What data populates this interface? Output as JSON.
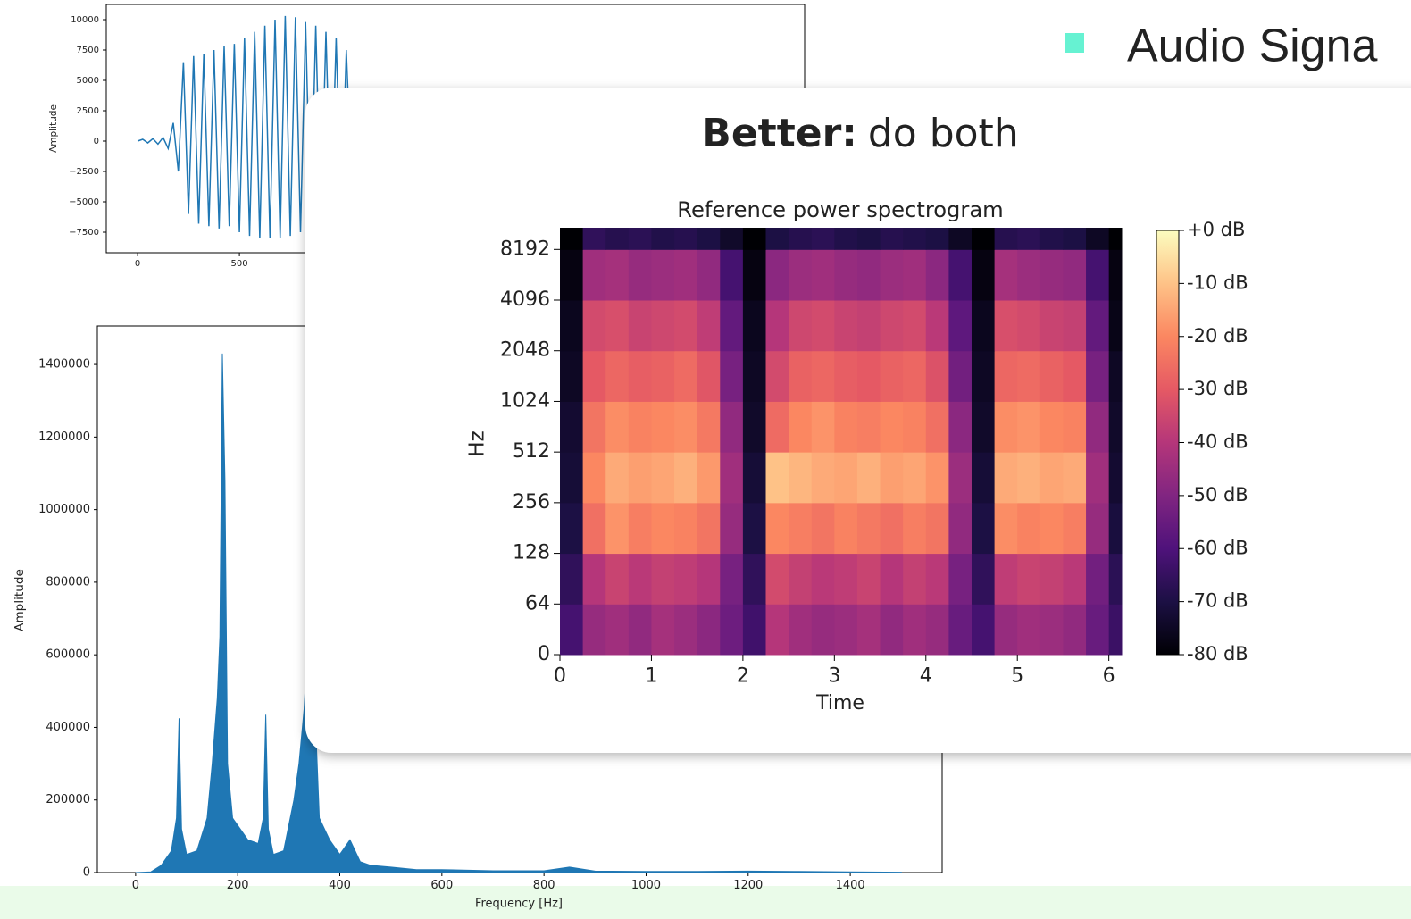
{
  "slide": {
    "heading": "Audio Signa",
    "card_title_bold": "Better:",
    "card_title_rest": "do both"
  },
  "chart_data": [
    {
      "type": "line",
      "y_label": "Amplitude",
      "color": "#1f77b4",
      "xlim": [
        -154,
        3276
      ],
      "ylim": [
        -9190,
        11250
      ],
      "xticks": [
        0,
        500
      ],
      "yticks": [
        10000,
        7500,
        5000,
        2500,
        0,
        {
          "value": -2500,
          "label": "−2500"
        },
        {
          "value": -5000,
          "label": "−5000"
        },
        {
          "value": -7500,
          "label": "−7500"
        }
      ],
      "x": [
        0,
        25,
        50,
        75,
        100,
        125,
        150,
        175,
        200,
        225,
        250,
        275,
        300,
        325,
        350,
        375,
        400,
        425,
        450,
        475,
        500,
        525,
        550,
        575,
        600,
        625,
        650,
        675,
        700,
        725,
        750,
        775,
        800,
        825,
        850,
        875,
        900,
        925,
        950,
        975,
        1000,
        1025,
        1050
      ],
      "values": [
        0,
        150,
        -150,
        200,
        -250,
        300,
        -600,
        1500,
        -2500,
        6500,
        -6000,
        7000,
        -6800,
        7200,
        -7000,
        7500,
        -7200,
        7800,
        -7000,
        8000,
        -7500,
        8500,
        -7800,
        9000,
        -8000,
        9500,
        -8000,
        10000,
        -8000,
        10300,
        -7800,
        10200,
        -7500,
        9800,
        -7200,
        9500,
        -7000,
        9000,
        -6500,
        8500,
        -6000,
        7500,
        -3000
      ]
    },
    {
      "type": "area",
      "x_label": "Frequency [Hz]",
      "y_label": "Amplitude",
      "color": "#1f77b4",
      "xlim": [
        -75,
        1580
      ],
      "ylim": [
        0,
        1506000
      ],
      "xticks": [
        0,
        200,
        400,
        600,
        800,
        1000,
        1200,
        1400
      ],
      "yticks": [
        0,
        200000,
        400000,
        600000,
        800000,
        1000000,
        1200000,
        1400000
      ],
      "x": [
        0,
        30,
        50,
        70,
        80,
        85,
        90,
        100,
        120,
        140,
        150,
        160,
        165,
        170,
        175,
        180,
        190,
        200,
        220,
        240,
        250,
        255,
        260,
        270,
        290,
        310,
        320,
        330,
        340,
        350,
        360,
        380,
        400,
        420,
        440,
        460,
        500,
        550,
        600,
        700,
        800,
        850,
        900,
        1000,
        1100,
        1200,
        1300,
        1400,
        1500
      ],
      "values": [
        0,
        2000,
        20000,
        60000,
        150000,
        425000,
        120000,
        50000,
        60000,
        150000,
        300000,
        480000,
        650000,
        1430000,
        1080000,
        300000,
        150000,
        130000,
        90000,
        80000,
        150000,
        435000,
        120000,
        50000,
        60000,
        200000,
        300000,
        450000,
        700000,
        500000,
        150000,
        90000,
        50000,
        90000,
        30000,
        20000,
        15000,
        8000,
        8000,
        5000,
        5000,
        15000,
        4000,
        3000,
        3000,
        4000,
        3000,
        2000,
        1000
      ]
    },
    {
      "type": "heatmap",
      "title": "Reference power spectrogram",
      "x_label": "Time",
      "y_label": "Hz",
      "colormap": "magma",
      "yscale": "symlog",
      "linthresh": 64,
      "xlim": [
        0,
        6.14
      ],
      "ylim": [
        0,
        11025
      ],
      "xticks": [
        0,
        1,
        2,
        3,
        4,
        5,
        6
      ],
      "yticks": [
        0,
        64,
        128,
        256,
        512,
        1024,
        2048,
        4096,
        8192
      ],
      "clim": [
        -80,
        0
      ],
      "cticks": [
        {
          "value": 0,
          "label": "+0 dB"
        },
        {
          "value": -10,
          "label": "-10 dB"
        },
        {
          "value": -20,
          "label": "-20 dB"
        },
        {
          "value": -30,
          "label": "-30 dB"
        },
        {
          "value": -40,
          "label": "-40 dB"
        },
        {
          "value": -50,
          "label": "-50 dB"
        },
        {
          "value": -60,
          "label": "-60 dB"
        },
        {
          "value": -70,
          "label": "-70 dB"
        },
        {
          "value": -80,
          "label": "-80 dB"
        }
      ],
      "x_edges": [
        0,
        0.25,
        0.5,
        0.75,
        1,
        1.25,
        1.5,
        1.75,
        2,
        2.25,
        2.5,
        2.75,
        3,
        3.25,
        3.5,
        3.75,
        4,
        4.25,
        4.5,
        4.75,
        5,
        5.25,
        5.5,
        5.75,
        6,
        6.14
      ],
      "y_edges": [
        0,
        64,
        128,
        256,
        512,
        1024,
        2048,
        4096,
        8192,
        11025
      ],
      "z": [
        [
          -62,
          -46,
          -44,
          -47,
          -43,
          -45,
          -48,
          -54,
          -63,
          -40,
          -44,
          -46,
          -45,
          -43,
          -47,
          -44,
          -46,
          -55,
          -62,
          -46,
          -44,
          -45,
          -47,
          -55,
          -64
        ],
        [
          -66,
          -40,
          -36,
          -39,
          -37,
          -38,
          -40,
          -52,
          -66,
          -34,
          -37,
          -39,
          -38,
          -36,
          -40,
          -37,
          -39,
          -52,
          -66,
          -38,
          -36,
          -37,
          -39,
          -53,
          -67
        ],
        [
          -70,
          -25,
          -18,
          -22,
          -20,
          -21,
          -24,
          -46,
          -70,
          -20,
          -22,
          -24,
          -21,
          -23,
          -25,
          -22,
          -24,
          -47,
          -70,
          -19,
          -21,
          -20,
          -22,
          -46,
          -71
        ],
        [
          -72,
          -20,
          -14,
          -16,
          -15,
          -13,
          -17,
          -44,
          -72,
          -10,
          -12,
          -14,
          -15,
          -13,
          -16,
          -15,
          -18,
          -45,
          -72,
          -14,
          -13,
          -15,
          -14,
          -44,
          -73
        ],
        [
          -73,
          -24,
          -19,
          -21,
          -20,
          -19,
          -23,
          -47,
          -74,
          -26,
          -20,
          -18,
          -21,
          -22,
          -20,
          -21,
          -25,
          -48,
          -74,
          -19,
          -18,
          -20,
          -21,
          -47,
          -74
        ],
        [
          -75,
          -30,
          -27,
          -29,
          -28,
          -26,
          -31,
          -52,
          -75,
          -34,
          -28,
          -27,
          -29,
          -30,
          -28,
          -27,
          -32,
          -53,
          -75,
          -27,
          -26,
          -28,
          -30,
          -52,
          -75
        ],
        [
          -76,
          -34,
          -33,
          -36,
          -35,
          -34,
          -38,
          -56,
          -76,
          -40,
          -35,
          -34,
          -36,
          -37,
          -35,
          -34,
          -39,
          -57,
          -76,
          -33,
          -34,
          -36,
          -37,
          -56,
          -77
        ],
        [
          -78,
          -44,
          -43,
          -46,
          -45,
          -44,
          -47,
          -62,
          -78,
          -48,
          -45,
          -44,
          -46,
          -47,
          -45,
          -44,
          -48,
          -62,
          -78,
          -43,
          -45,
          -46,
          -47,
          -62,
          -78
        ],
        [
          -80,
          -66,
          -68,
          -67,
          -69,
          -68,
          -70,
          -74,
          -80,
          -70,
          -68,
          -67,
          -69,
          -70,
          -68,
          -69,
          -70,
          -75,
          -80,
          -68,
          -67,
          -69,
          -70,
          -75,
          -80
        ]
      ]
    }
  ]
}
